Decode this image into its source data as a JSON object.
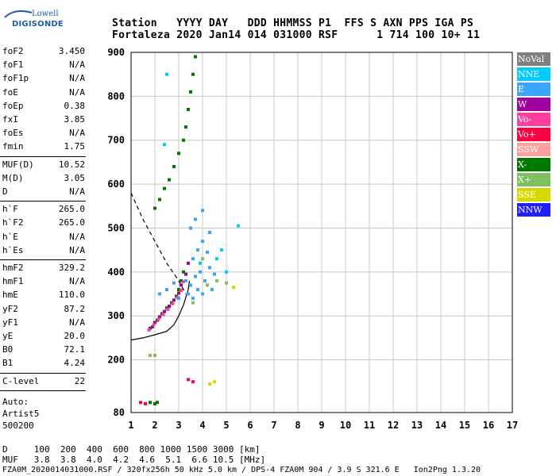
{
  "logo": {
    "line1": "Lowell",
    "line2": "DIGISONDE"
  },
  "header": {
    "row1": "Station   YYYY DAY   DDD HHMMSS P1  FFS S AXN PPS IGA PS",
    "row2": "Fortaleza 2020 Jan14 014 031000 RSF      1 714 100 10+ 11"
  },
  "left_panel": {
    "group1": [
      {
        "k": "foF2",
        "v": "3.450"
      },
      {
        "k": "foF1",
        "v": "N/A"
      },
      {
        "k": "foF1p",
        "v": "N/A"
      },
      {
        "k": "foE",
        "v": "N/A"
      },
      {
        "k": "foEp",
        "v": "0.38"
      },
      {
        "k": "fxI",
        "v": "3.85"
      },
      {
        "k": "foEs",
        "v": "N/A"
      },
      {
        "k": "fmin",
        "v": "1.75"
      }
    ],
    "group2": [
      {
        "k": "MUF(D)",
        "v": "10.52"
      },
      {
        "k": "M(D)",
        "v": "3.05"
      },
      {
        "k": "D",
        "v": "N/A"
      }
    ],
    "group3": [
      {
        "k": "h`F",
        "v": "265.0"
      },
      {
        "k": "h`F2",
        "v": "265.0"
      },
      {
        "k": "h`E",
        "v": "N/A"
      },
      {
        "k": "h`Es",
        "v": "N/A"
      }
    ],
    "group4": [
      {
        "k": "hmF2",
        "v": "329.2"
      },
      {
        "k": "hmF1",
        "v": "N/A"
      },
      {
        "k": "hmE",
        "v": "110.0"
      },
      {
        "k": "yF2",
        "v": "87.2"
      },
      {
        "k": "yF1",
        "v": "N/A"
      },
      {
        "k": "yE",
        "v": "20.0"
      },
      {
        "k": "B0",
        "v": "72.1"
      },
      {
        "k": "B1",
        "v": "4.24"
      }
    ],
    "group5": [
      {
        "k": "C-level",
        "v": "22"
      }
    ],
    "auto_label": "Auto:",
    "artist": "Artist5",
    "artist_version": "500200"
  },
  "legend": [
    {
      "label": "NoVal",
      "color": "#7f7f7f",
      "text": "#ffffff"
    },
    {
      "label": "NNE",
      "color": "#00ccff",
      "text": "#ffffff"
    },
    {
      "label": "E",
      "color": "#3aa6ff",
      "text": "#ffffff"
    },
    {
      "label": "W",
      "color": "#a000a0",
      "text": "#ffffff"
    },
    {
      "label": "Vo-",
      "color": "#ff3ea0",
      "text": "#ffffff"
    },
    {
      "label": "Vo+",
      "color": "#ff0040",
      "text": "#ffffff"
    },
    {
      "label": "SSW",
      "color": "#ffa0a0",
      "text": "#ffffff"
    },
    {
      "label": "X-",
      "color": "#007800",
      "text": "#ffffff"
    },
    {
      "label": "X+",
      "color": "#7fbf5f",
      "text": "#ffffff"
    },
    {
      "label": "SSE",
      "color": "#d8d800",
      "text": "#ffffff"
    },
    {
      "label": "NNW",
      "color": "#2020ff",
      "text": "#ffffff"
    }
  ],
  "bottom": {
    "d_row": "D     100  200  400  600  800 1000 1500 3000 [km]",
    "muf_row": "MUF   3.8  3.8  4.0  4.2  4.6  5.1  6.6 10.5 [MHz]",
    "footer": "FZA0M_2020014031000.RSF / 320fx256h 50 kHz 5.0 km / DPS-4 FZA0M 904 / 3.9 S 321.6 E   Ion2Png 1.3.20"
  },
  "chart_data": {
    "type": "scatter",
    "xlim": [
      1,
      17
    ],
    "ylim": [
      80,
      900
    ],
    "x_ticks": [
      "1",
      "2",
      "3",
      "4",
      "5",
      "6",
      "7",
      "8",
      "9",
      "10",
      "11",
      "12",
      "13",
      "14",
      "15",
      "16",
      "17"
    ],
    "y_ticks": [
      "80",
      "200",
      "300",
      "400",
      "500",
      "600",
      "700",
      "800",
      "900"
    ],
    "grid": true,
    "legend_position": "right",
    "traces": [
      {
        "series": "X-",
        "color": "#007800",
        "points": [
          [
            1.9,
            275
          ],
          [
            2.1,
            290
          ],
          [
            2.3,
            305
          ],
          [
            2.5,
            318
          ],
          [
            2.7,
            330
          ],
          [
            2.9,
            345
          ],
          [
            3.0,
            360
          ],
          [
            3.1,
            380
          ],
          [
            3.2,
            400
          ],
          [
            2.0,
            545
          ],
          [
            2.2,
            565
          ],
          [
            2.4,
            590
          ],
          [
            2.6,
            610
          ],
          [
            2.8,
            640
          ],
          [
            3.0,
            670
          ],
          [
            3.2,
            700
          ],
          [
            3.3,
            730
          ],
          [
            3.4,
            770
          ],
          [
            3.5,
            810
          ],
          [
            3.6,
            850
          ],
          [
            3.7,
            890
          ]
        ]
      },
      {
        "series": "W",
        "color": "#a000a0",
        "points": [
          [
            1.8,
            272
          ],
          [
            2.0,
            285
          ],
          [
            2.2,
            298
          ],
          [
            2.4,
            310
          ],
          [
            2.6,
            322
          ],
          [
            2.8,
            336
          ],
          [
            3.0,
            352
          ],
          [
            3.1,
            370
          ],
          [
            3.3,
            395
          ],
          [
            3.4,
            420
          ]
        ]
      },
      {
        "series": "Vo-",
        "color": "#ff3ea0",
        "points": [
          [
            1.75,
            268
          ],
          [
            1.95,
            280
          ],
          [
            2.15,
            292
          ],
          [
            2.35,
            303
          ],
          [
            2.55,
            315
          ],
          [
            2.75,
            328
          ],
          [
            2.95,
            342
          ],
          [
            3.1,
            358
          ],
          [
            3.2,
            378
          ]
        ]
      },
      {
        "series": "E",
        "color": "#3aa6ff",
        "points": [
          [
            3.3,
            380
          ],
          [
            3.5,
            370
          ],
          [
            3.7,
            390
          ],
          [
            3.9,
            400
          ],
          [
            4.1,
            380
          ],
          [
            4.3,
            410
          ],
          [
            4.5,
            395
          ],
          [
            3.6,
            430
          ],
          [
            3.8,
            450
          ],
          [
            4.0,
            470
          ],
          [
            4.2,
            445
          ],
          [
            3.4,
            350
          ],
          [
            3.6,
            340
          ],
          [
            3.8,
            360
          ],
          [
            4.0,
            350
          ],
          [
            4.4,
            360
          ],
          [
            3.5,
            500
          ],
          [
            3.7,
            520
          ],
          [
            4.0,
            540
          ],
          [
            4.3,
            490
          ],
          [
            2.5,
            360
          ],
          [
            2.8,
            375
          ],
          [
            3.0,
            340
          ],
          [
            2.2,
            350
          ]
        ]
      },
      {
        "series": "NNE",
        "color": "#00ccff",
        "points": [
          [
            2.5,
            850
          ],
          [
            2.4,
            690
          ],
          [
            3.9,
            420
          ],
          [
            4.6,
            430
          ],
          [
            5.0,
            400
          ],
          [
            5.5,
            505
          ],
          [
            4.8,
            450
          ]
        ]
      },
      {
        "series": "X+",
        "color": "#7fbf5f",
        "points": [
          [
            4.2,
            370
          ],
          [
            4.6,
            380
          ],
          [
            5.0,
            375
          ],
          [
            4.0,
            430
          ],
          [
            3.6,
            330
          ],
          [
            1.8,
            210
          ],
          [
            2.0,
            210
          ]
        ]
      },
      {
        "series": "SSE",
        "color": "#d8d800",
        "points": [
          [
            4.3,
            145
          ],
          [
            4.5,
            150
          ],
          [
            5.3,
            365
          ]
        ]
      },
      {
        "series": "Vo+",
        "color": "#ff0040",
        "points": [
          [
            1.4,
            103
          ],
          [
            1.6,
            100
          ],
          [
            3.4,
            155
          ],
          [
            3.6,
            150
          ]
        ]
      },
      {
        "series": "X-",
        "color": "#007800",
        "points": [
          [
            1.8,
            103
          ],
          [
            2.0,
            100
          ],
          [
            2.1,
            103
          ]
        ]
      }
    ],
    "profile_curve": [
      [
        1.0,
        245
      ],
      [
        1.5,
        250
      ],
      [
        2.0,
        257
      ],
      [
        2.5,
        265
      ],
      [
        2.8,
        280
      ],
      [
        3.0,
        300
      ],
      [
        3.2,
        325
      ],
      [
        3.4,
        360
      ],
      [
        3.45,
        380
      ]
    ],
    "dashed_curve": [
      [
        1.0,
        580
      ],
      [
        1.5,
        520
      ],
      [
        2.0,
        470
      ],
      [
        2.5,
        420
      ],
      [
        3.0,
        380
      ],
      [
        3.3,
        350
      ]
    ]
  }
}
